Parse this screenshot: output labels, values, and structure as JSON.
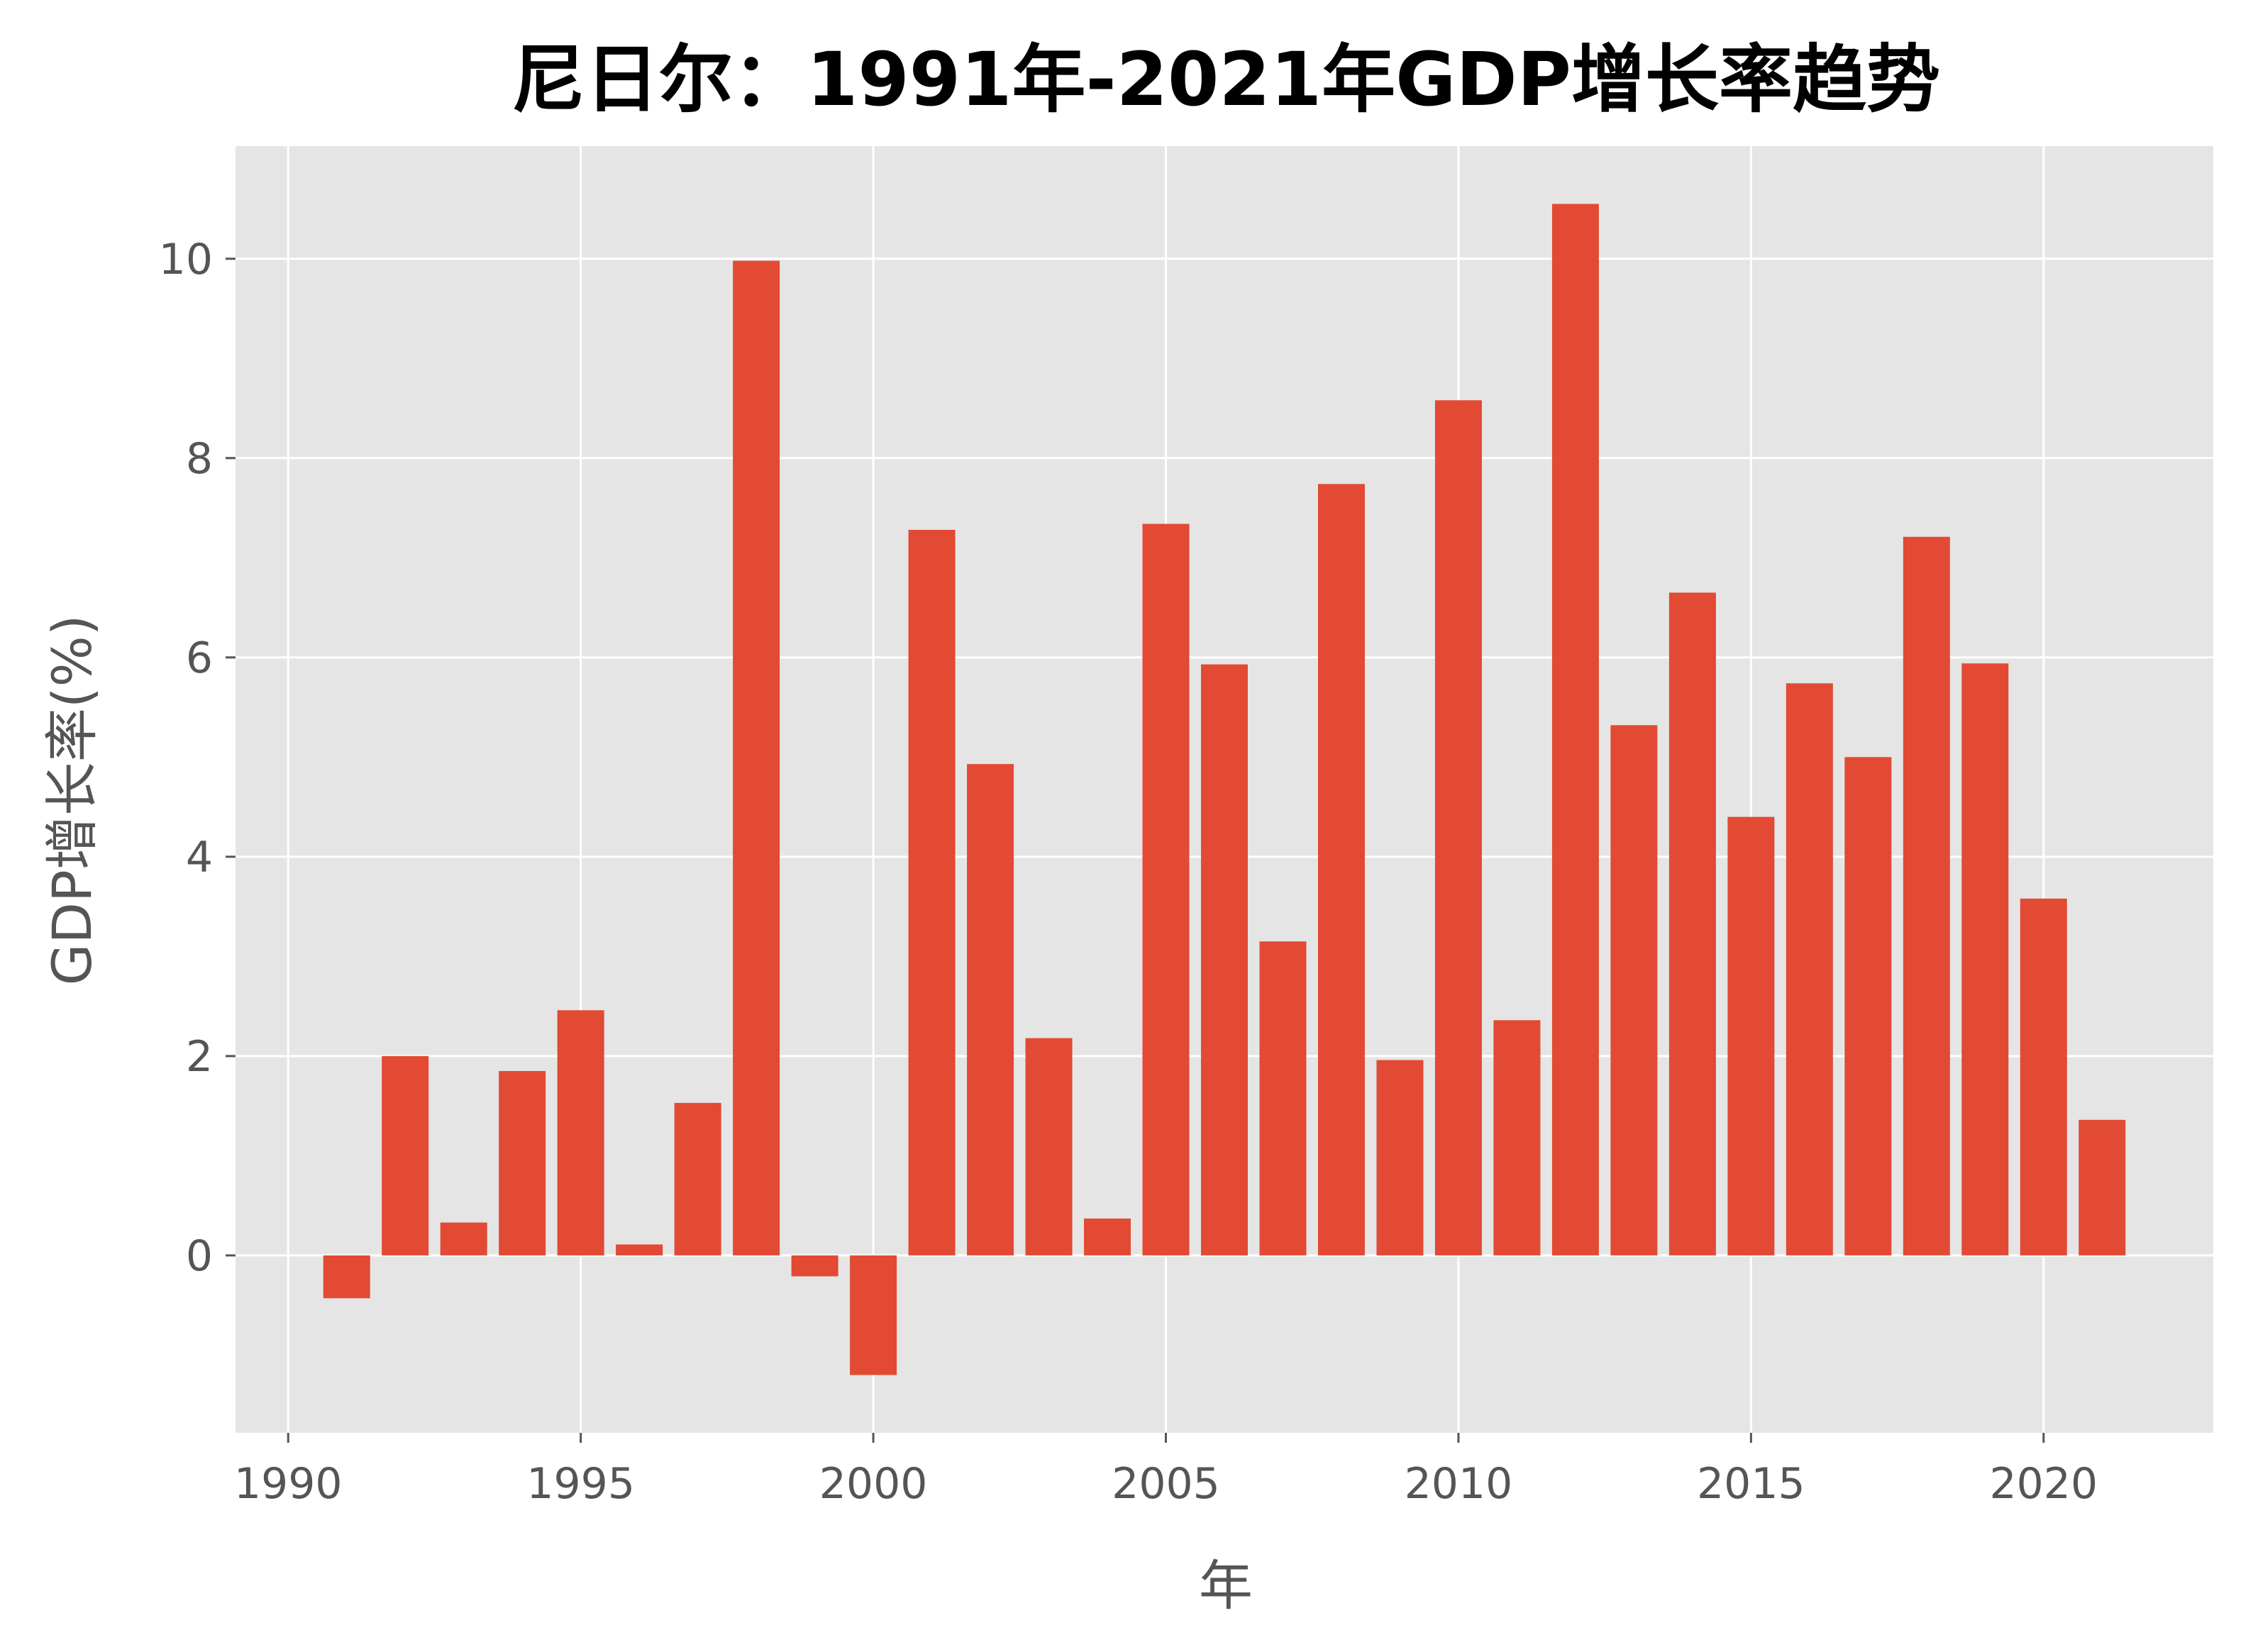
{
  "chart_data": {
    "type": "bar",
    "title": "尼日尔：1991年-2021年GDP增长率趋势",
    "xlabel": "年",
    "ylabel": "GDP增长率(%)",
    "x": [
      1991,
      1992,
      1993,
      1994,
      1995,
      1996,
      1997,
      1998,
      1999,
      2000,
      2001,
      2002,
      2003,
      2004,
      2005,
      2006,
      2007,
      2008,
      2009,
      2010,
      2011,
      2012,
      2013,
      2014,
      2015,
      2016,
      2017,
      2018,
      2019,
      2020,
      2021
    ],
    "values": [
      -0.43,
      2.0,
      0.33,
      1.85,
      2.46,
      0.11,
      1.53,
      9.98,
      -0.21,
      -1.2,
      7.28,
      4.93,
      2.18,
      0.37,
      7.34,
      5.93,
      3.15,
      7.74,
      1.96,
      8.58,
      2.36,
      10.55,
      5.32,
      6.65,
      4.4,
      5.74,
      5.0,
      7.21,
      5.94,
      3.58,
      1.36
    ],
    "xlim": [
      1989.1,
      1992.9
    ],
    "ylim": [
      -1.78,
      11.13
    ],
    "xticks": [
      1990,
      1995,
      2000,
      2005,
      2010,
      2015,
      2020
    ],
    "yticks": [
      0,
      2,
      4,
      6,
      8,
      10
    ],
    "grid": true,
    "colors": {
      "bar": "#E24A33",
      "plot_background": "#E5E5E5",
      "grid": "#FFFFFF"
    }
  }
}
